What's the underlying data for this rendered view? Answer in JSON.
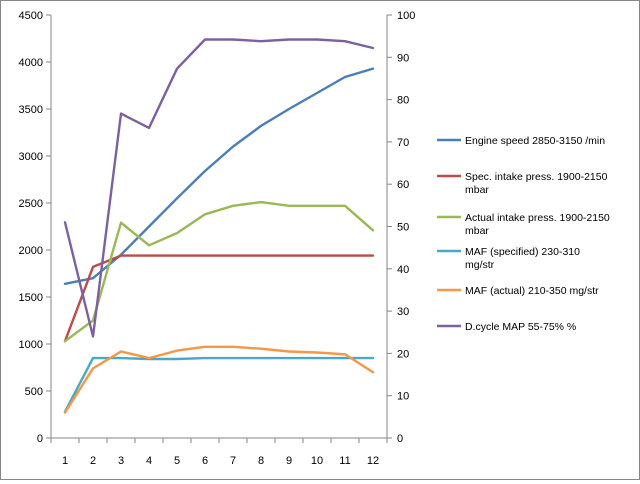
{
  "chart_data": {
    "type": "line",
    "title": "",
    "xlabel": "",
    "ylabel": "",
    "categories": [
      "1",
      "2",
      "3",
      "4",
      "5",
      "6",
      "7",
      "8",
      "9",
      "10",
      "11",
      "12"
    ],
    "left_axis": {
      "ylim": [
        0,
        4500
      ],
      "ticks": [
        0,
        500,
        1000,
        1500,
        2000,
        2500,
        3000,
        3500,
        4000,
        4500
      ]
    },
    "right_axis": {
      "ylim": [
        0,
        100
      ],
      "ticks": [
        0,
        10,
        20,
        30,
        40,
        50,
        60,
        70,
        80,
        90,
        100
      ]
    },
    "grid": false,
    "legend_position": "right",
    "series": [
      {
        "name": "Engine speed 2850-3150  /min",
        "axis": "left",
        "color": "#4a7ebb",
        "values": [
          1640,
          1700,
          1950,
          2250,
          2550,
          2840,
          3100,
          3320,
          3500,
          3670,
          3840,
          3930
        ]
      },
      {
        "name": "Spec. intake press. 1900-2150 mbar",
        "axis": "left",
        "color": "#be4b48",
        "values": [
          1030,
          1820,
          1940,
          1940,
          1940,
          1940,
          1940,
          1940,
          1940,
          1940,
          1940,
          1940
        ]
      },
      {
        "name": "Actual intake press. 1900-2150 mbar",
        "axis": "left",
        "color": "#98b954",
        "values": [
          1030,
          1250,
          2290,
          2050,
          2180,
          2380,
          2470,
          2510,
          2470,
          2470,
          2470,
          2210
        ]
      },
      {
        "name": "MAF (specified) 230-310  mg/str",
        "axis": "left",
        "color": "#46aac5",
        "values": [
          280,
          850,
          850,
          840,
          840,
          850,
          850,
          850,
          850,
          850,
          850,
          850
        ]
      },
      {
        "name": "MAF (actual)  210-350  mg/str",
        "axis": "left",
        "color": "#f79646",
        "values": [
          270,
          740,
          920,
          850,
          930,
          970,
          970,
          950,
          920,
          910,
          890,
          700
        ]
      },
      {
        "name": "D.cycle MAP 55-75% %",
        "axis": "right",
        "color": "#7d60a0",
        "values": [
          51,
          24,
          76.7,
          73.3,
          87.3,
          94.2,
          94.2,
          93.8,
          94.2,
          94.2,
          93.8,
          92.2
        ]
      }
    ]
  }
}
